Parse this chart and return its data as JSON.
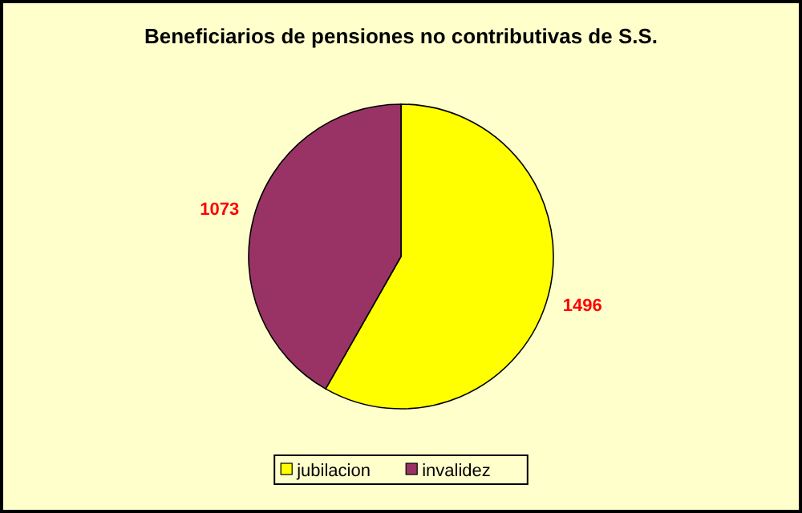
{
  "chart_data": {
    "type": "pie",
    "title": "Beneficiarios de pensiones no contributivas de S.S.",
    "categories": [
      "jubilacion",
      "invalidez"
    ],
    "values": [
      1496,
      1073
    ],
    "colors": [
      "#ffff00",
      "#993366"
    ],
    "data_labels": true,
    "legend": "bottom"
  }
}
